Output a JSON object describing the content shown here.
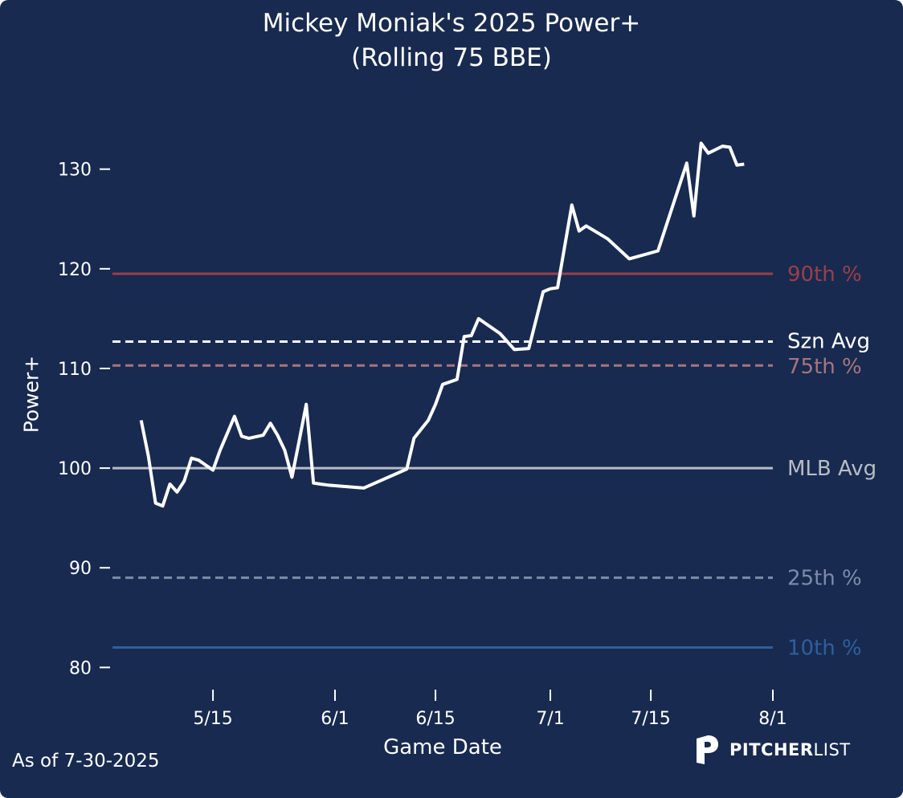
{
  "title_line1": "Mickey Moniak's 2025 Power+",
  "title_line2": "(Rolling 75 BBE)",
  "footnote": "As of 7-30-2025",
  "logo": {
    "bold": "PITCHER",
    "light": "LIST",
    "icon": "pitcherlist-logo-icon"
  },
  "colors": {
    "background": "#182a4f",
    "series": "#ffffff",
    "pct90": "#9b3f4b",
    "pct75": "#a8757e",
    "mlb_avg": "#b8bcc6",
    "pct25": "#7c8cab",
    "pct10": "#2f5f9f"
  },
  "chart_data": {
    "type": "line",
    "title": "Mickey Moniak's 2025 Power+ (Rolling 75 BBE)",
    "xlabel": "Game Date",
    "ylabel": "Power+",
    "x_ticks": [
      "5/15",
      "6/1",
      "6/15",
      "7/1",
      "7/15",
      "8/1"
    ],
    "y_ticks": [
      80,
      90,
      100,
      110,
      120,
      130
    ],
    "xlim": [
      "2025-05-01",
      "2025-08-01"
    ],
    "ylim": [
      78.5,
      136.5
    ],
    "grid": false,
    "legend": "none",
    "reference_lines": [
      {
        "label": "90th %",
        "value": 119.5,
        "style": "solid",
        "color": "#9b3f4b"
      },
      {
        "label": "Szn Avg",
        "value": 112.7,
        "style": "dashed",
        "color": "#ffffff"
      },
      {
        "label": "75th %",
        "value": 110.3,
        "style": "dashed",
        "color": "#a8757e"
      },
      {
        "label": "MLB Avg",
        "value": 100.0,
        "style": "solid",
        "color": "#b8bcc6"
      },
      {
        "label": "25th %",
        "value": 89.0,
        "style": "dashed",
        "color": "#7c8cab"
      },
      {
        "label": "10th %",
        "value": 82.0,
        "style": "solid",
        "color": "#2f5f9f"
      }
    ],
    "series": [
      {
        "dates": [
          "2025-05-05",
          "2025-05-06",
          "2025-05-07",
          "2025-05-08",
          "2025-05-09",
          "2025-05-10",
          "2025-05-11",
          "2025-05-12",
          "2025-05-13",
          "2025-05-15",
          "2025-05-16",
          "2025-05-18",
          "2025-05-19",
          "2025-05-20",
          "2025-05-22",
          "2025-05-23",
          "2025-05-24",
          "2025-05-25",
          "2025-05-26",
          "2025-05-27",
          "2025-05-28",
          "2025-05-29",
          "2025-05-30",
          "2025-05-31",
          "2025-06-05",
          "2025-06-11",
          "2025-06-12",
          "2025-06-14",
          "2025-06-15",
          "2025-06-16",
          "2025-06-18",
          "2025-06-19",
          "2025-06-20",
          "2025-06-21",
          "2025-06-24",
          "2025-06-26",
          "2025-06-28",
          "2025-06-30",
          "2025-07-01",
          "2025-07-02",
          "2025-07-04",
          "2025-07-05",
          "2025-07-06",
          "2025-07-09",
          "2025-07-12",
          "2025-07-16",
          "2025-07-20",
          "2025-07-21",
          "2025-07-22",
          "2025-07-23",
          "2025-07-25",
          "2025-07-26",
          "2025-07-27",
          "2025-07-28"
        ],
        "values": [
          104.8,
          101.2,
          96.5,
          96.2,
          98.4,
          97.6,
          98.7,
          101.0,
          100.8,
          99.8,
          101.8,
          105.2,
          103.2,
          103.0,
          103.3,
          104.5,
          103.3,
          101.8,
          99.1,
          102.7,
          106.4,
          98.5,
          98.4,
          98.3,
          98.0,
          99.9,
          103.0,
          104.8,
          106.4,
          108.4,
          108.9,
          113.2,
          113.3,
          115.0,
          113.5,
          111.9,
          112.0,
          117.7,
          118.0,
          118.1,
          126.4,
          123.8,
          124.3,
          123.0,
          121.0,
          121.8,
          130.6,
          125.3,
          132.6,
          131.6,
          132.3,
          132.2,
          130.4,
          130.5
        ]
      }
    ]
  }
}
